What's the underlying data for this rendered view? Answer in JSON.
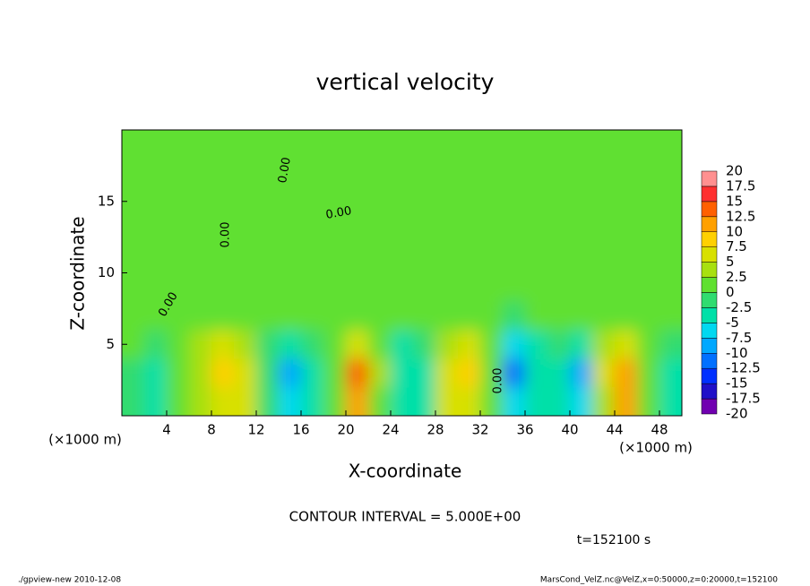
{
  "chart_data": {
    "type": "heatmap",
    "title": "vertical velocity",
    "xlabel": "X-coordinate",
    "ylabel": "Z-coordinate",
    "x_unit": "(×1000 m)",
    "y_unit": "(×1000 m)",
    "contour_interval": "CONTOUR INTERVAL = 5.000E+00",
    "time": "t=152100 s",
    "footer_left": "./gpview-new  2010-12-08",
    "footer_right": "MarsCond_VelZ.nc@VelZ,x=0:50000,z=0:20000,t=152100",
    "contour_labels": [
      "0.00",
      "0.00",
      "0.00",
      "0.00",
      "0.00"
    ],
    "xlim": [
      0,
      50
    ],
    "ylim": [
      0,
      20
    ],
    "xticks": [
      4,
      8,
      12,
      16,
      20,
      24,
      28,
      32,
      36,
      40,
      44,
      48
    ],
    "yticks": [
      5,
      10,
      15
    ],
    "xbins": [
      0,
      2,
      4,
      6,
      8,
      10,
      12,
      14,
      16,
      18,
      20,
      22,
      24,
      26,
      28,
      30,
      32,
      34,
      36,
      38,
      40,
      42,
      44,
      46,
      48,
      50
    ],
    "zbins": [
      0,
      2,
      4,
      6,
      8,
      10,
      12,
      14,
      16,
      18,
      20
    ],
    "values": [
      [
        -1,
        -3,
        0,
        3,
        6,
        5,
        -2,
        -6,
        -3,
        2,
        10,
        2,
        -4,
        -3,
        5,
        6,
        1,
        -7,
        -4,
        -3,
        -6,
        4,
        10,
        0,
        -4
      ],
      [
        -1,
        -4,
        0,
        4,
        9,
        7,
        -2,
        -8,
        -4,
        2,
        13,
        3,
        -5,
        -4,
        7,
        8,
        1,
        -11,
        -5,
        -4,
        -8,
        6,
        12,
        0,
        -5
      ],
      [
        0,
        -2,
        0,
        3,
        5,
        4,
        -1,
        -4,
        -2,
        1,
        7,
        2,
        -3,
        -2,
        4,
        5,
        0,
        -6,
        -3,
        -2,
        -4,
        3,
        6,
        0,
        -2
      ],
      [
        1,
        2,
        1,
        1,
        1,
        1,
        0,
        0,
        0,
        1,
        1,
        1,
        0,
        0,
        1,
        1,
        0,
        -1,
        0,
        0,
        0,
        1,
        1,
        0,
        0
      ],
      [
        1,
        1,
        1,
        0,
        1,
        1,
        1,
        1,
        0,
        1,
        1,
        1,
        1,
        1,
        1,
        1,
        1,
        0,
        1,
        1,
        1,
        1,
        1,
        1,
        1
      ],
      [
        1,
        1,
        1,
        1,
        1,
        1,
        1,
        1,
        1,
        1,
        1,
        1,
        1,
        1,
        1,
        1,
        1,
        1,
        1,
        1,
        1,
        1,
        1,
        1,
        1
      ],
      [
        1,
        1,
        1,
        1,
        1,
        1,
        1,
        1,
        1,
        1,
        1,
        1,
        1,
        1,
        1,
        1,
        1,
        1,
        1,
        1,
        1,
        1,
        1,
        1,
        1
      ],
      [
        1,
        1,
        1,
        1,
        1,
        1,
        1,
        1,
        1,
        1,
        1,
        1,
        1,
        1,
        1,
        1,
        1,
        1,
        1,
        1,
        1,
        1,
        1,
        1,
        1
      ],
      [
        1,
        1,
        1,
        1,
        1,
        1,
        1,
        1,
        1,
        1,
        1,
        1,
        1,
        1,
        1,
        1,
        1,
        1,
        1,
        1,
        1,
        1,
        1,
        1,
        1
      ],
      [
        1,
        1,
        1,
        1,
        1,
        1,
        1,
        1,
        1,
        1,
        1,
        1,
        1,
        1,
        1,
        1,
        1,
        1,
        1,
        1,
        1,
        1,
        1,
        1,
        1
      ]
    ],
    "levels": [
      -20,
      -17.5,
      -15,
      -12.5,
      -10,
      -7.5,
      -5,
      -2.5,
      0,
      2.5,
      5,
      7.5,
      10,
      12.5,
      15,
      17.5,
      20
    ],
    "colors": [
      "#7000b0",
      "#2010c8",
      "#0030ff",
      "#0070ff",
      "#00a8ff",
      "#00d8f0",
      "#00e0a8",
      "#30dc70",
      "#60e030",
      "#a8e010",
      "#d8e000",
      "#ffd000",
      "#ffa000",
      "#ff6000",
      "#ff3030",
      "#ff9090"
    ]
  }
}
